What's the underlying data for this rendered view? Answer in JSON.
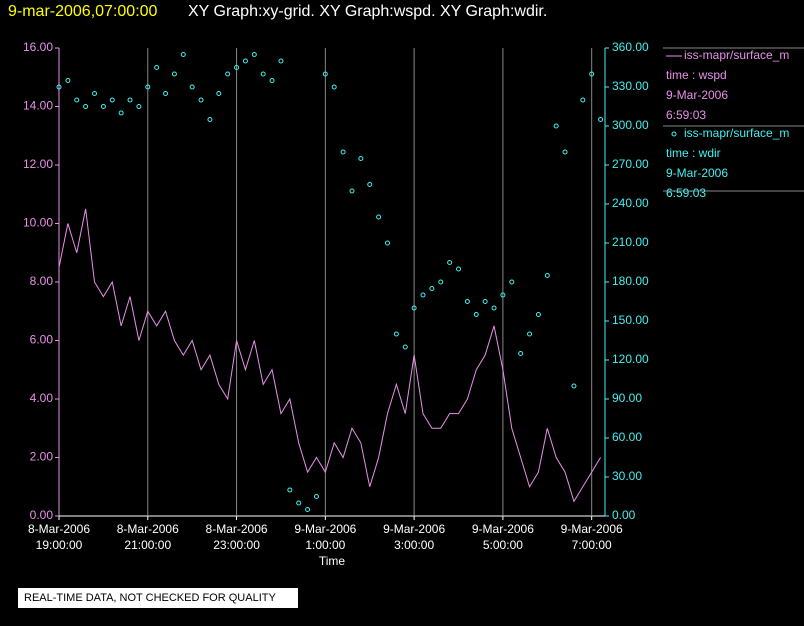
{
  "chart_data": {
    "type": "xy",
    "title": "9-mar-2006,07:00:00",
    "subtitle": "XY Graph:xy-grid.  XY Graph:wspd.  XY Graph:wdir.",
    "x_label": "Time",
    "footer": "REAL-TIME DATA, NOT CHECKED FOR QUALITY",
    "xlim": [
      19,
      31.3
    ],
    "xticks": [
      {
        "value": 19,
        "label": [
          "8-Mar-2006",
          "19:00:00"
        ]
      },
      {
        "value": 21,
        "label": [
          "8-Mar-2006",
          "21:00:00"
        ]
      },
      {
        "value": 23,
        "label": [
          "8-Mar-2006",
          "23:00:00"
        ]
      },
      {
        "value": 25,
        "label": [
          "9-Mar-2006",
          "1:00:00"
        ]
      },
      {
        "value": 27,
        "label": [
          "9-Mar-2006",
          "3:00:00"
        ]
      },
      {
        "value": 29,
        "label": [
          "9-Mar-2006",
          "5:00:00"
        ]
      },
      {
        "value": 31,
        "label": [
          "9-Mar-2006",
          "7:00:00"
        ]
      }
    ],
    "grid": true,
    "ylim": [
      0,
      16
    ],
    "yticks": [
      {
        "value": 0,
        "label": "0.00"
      },
      {
        "value": 2,
        "label": "2.00"
      },
      {
        "value": 4,
        "label": "4.00"
      },
      {
        "value": 6,
        "label": "6.00"
      },
      {
        "value": 8,
        "label": "8.00"
      },
      {
        "value": 10,
        "label": "10.00"
      },
      {
        "value": 12,
        "label": "12.00"
      },
      {
        "value": 14,
        "label": "14.00"
      },
      {
        "value": 16,
        "label": "16.00"
      }
    ],
    "y2lim": [
      0,
      360
    ],
    "y2ticks": [
      {
        "value": 0,
        "label": "0.00"
      },
      {
        "value": 30,
        "label": "30.00"
      },
      {
        "value": 60,
        "label": "60.00"
      },
      {
        "value": 90,
        "label": "90.00"
      },
      {
        "value": 120,
        "label": "120.00"
      },
      {
        "value": 150,
        "label": "150.00"
      },
      {
        "value": 180,
        "label": "180.00"
      },
      {
        "value": 210,
        "label": "210.00"
      },
      {
        "value": 240,
        "label": "240.00"
      },
      {
        "value": 270,
        "label": "270.00"
      },
      {
        "value": 300,
        "label": "300.00"
      },
      {
        "value": 330,
        "label": "330.00"
      },
      {
        "value": 360,
        "label": "360.00"
      }
    ],
    "x": [
      19.0,
      19.2,
      19.4,
      19.6,
      19.8,
      20.0,
      20.2,
      20.4,
      20.6,
      20.8,
      21.0,
      21.2,
      21.4,
      21.6,
      21.8,
      22.0,
      22.2,
      22.4,
      22.6,
      22.8,
      23.0,
      23.2,
      23.4,
      23.6,
      23.8,
      24.0,
      24.2,
      24.4,
      24.6,
      24.8,
      25.0,
      25.2,
      25.4,
      25.6,
      25.8,
      26.0,
      26.2,
      26.4,
      26.6,
      26.8,
      27.0,
      27.2,
      27.4,
      27.6,
      27.8,
      28.0,
      28.2,
      28.4,
      28.6,
      28.8,
      29.0,
      29.2,
      29.4,
      29.6,
      29.8,
      30.0,
      30.2,
      30.4,
      30.6,
      30.8,
      31.0,
      31.2
    ],
    "series": [
      {
        "name": "iss-mapr/surface_m",
        "legend_label": "time : wspd",
        "legend_date": "9-Mar-2006",
        "legend_time": "6:59:03",
        "style": "line",
        "color": "#e890e8",
        "values": [
          8.5,
          10,
          9,
          10.5,
          8,
          7.5,
          8,
          6.5,
          7.5,
          6,
          7,
          6.5,
          7,
          6,
          5.5,
          6,
          5,
          5.5,
          4.5,
          4,
          6,
          5,
          6,
          4.5,
          5,
          3.5,
          4,
          2.5,
          1.5,
          2,
          1.5,
          2.5,
          2,
          3,
          2.5,
          1,
          2,
          3.5,
          4.5,
          3.5,
          5.5,
          3.5,
          3,
          3,
          3.5,
          3.5,
          4,
          5,
          5.5,
          6.5,
          5,
          3,
          2,
          1,
          1.5,
          3,
          2,
          1.5,
          0.5,
          1,
          1.5,
          2
        ]
      },
      {
        "name": "iss-mapr/surface_m",
        "legend_label": "time : wdir",
        "legend_date": "9-Mar-2006",
        "legend_time": "6:59:03",
        "style": "points",
        "axis": "y2",
        "color": "#40f0f0",
        "values": [
          330,
          335,
          320,
          315,
          325,
          315,
          320,
          310,
          320,
          315,
          330,
          345,
          325,
          340,
          355,
          330,
          320,
          305,
          325,
          340,
          345,
          350,
          355,
          340,
          335,
          350,
          20,
          10,
          5,
          15,
          340,
          330,
          280,
          250,
          275,
          255,
          230,
          210,
          140,
          130,
          160,
          170,
          175,
          180,
          195,
          190,
          165,
          155,
          165,
          160,
          170,
          180,
          125,
          140,
          155,
          185,
          300,
          280,
          100,
          320,
          340,
          305
        ]
      }
    ]
  }
}
